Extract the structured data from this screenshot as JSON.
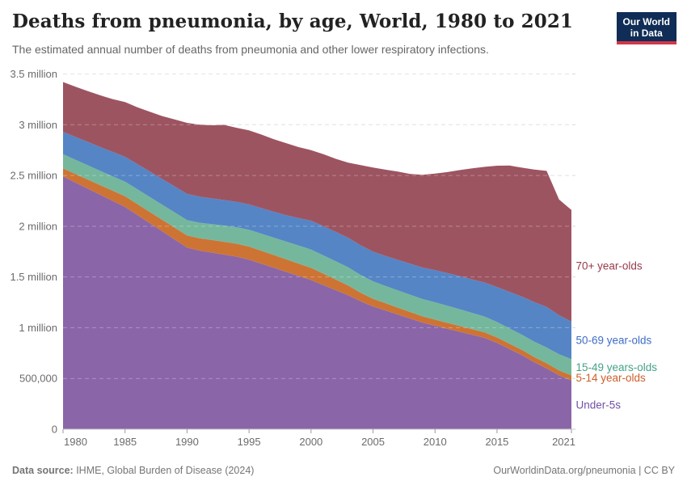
{
  "header": {
    "title": "Deaths from pneumonia, by age, World, 1980 to 2021",
    "subtitle": "The estimated annual number of deaths from pneumonia and other lower respiratory infections.",
    "logo": {
      "line1": "Our World",
      "line2": "in Data",
      "background_color": "#0f2d56",
      "accent_color": "#d0374a"
    }
  },
  "footer": {
    "source_label": "Data source:",
    "source_text": " IHME, Global Burden of Disease (2024)",
    "license": "OurWorldinData.org/pneumonia | CC BY"
  },
  "chart_data": {
    "type": "area",
    "stacked": true,
    "title": "Deaths from pneumonia, by age, World, 1980 to 2021",
    "xlabel": "",
    "ylabel": "",
    "xlim": [
      1980,
      2021
    ],
    "ylim": [
      0,
      3500000
    ],
    "grid": true,
    "gridline_color": "#d9d9d9",
    "legend_position": "right-labels",
    "x_ticks": [
      1980,
      1985,
      1990,
      1995,
      2000,
      2005,
      2010,
      2015,
      2021
    ],
    "y_ticks": [
      {
        "value": 0,
        "label": "0"
      },
      {
        "value": 500000,
        "label": "500,000"
      },
      {
        "value": 1000000,
        "label": "1 million"
      },
      {
        "value": 1500000,
        "label": "1.5 million"
      },
      {
        "value": 2000000,
        "label": "2 million"
      },
      {
        "value": 2500000,
        "label": "2.5 million"
      },
      {
        "value": 3000000,
        "label": "3 million"
      },
      {
        "value": 3500000,
        "label": "3.5 million"
      }
    ],
    "x": [
      1980,
      1981,
      1982,
      1983,
      1984,
      1985,
      1986,
      1987,
      1988,
      1989,
      1990,
      1991,
      1992,
      1993,
      1994,
      1995,
      1996,
      1997,
      1998,
      1999,
      2000,
      2001,
      2002,
      2003,
      2004,
      2005,
      2006,
      2007,
      2008,
      2009,
      2010,
      2011,
      2012,
      2013,
      2014,
      2015,
      2016,
      2017,
      2018,
      2019,
      2020,
      2021
    ],
    "series": [
      {
        "id": "under-5s",
        "label": "Under-5s",
        "color": "#8a65a8",
        "label_color": "#7052a6",
        "values": [
          2490000,
          2430000,
          2370000,
          2310000,
          2250000,
          2190000,
          2110000,
          2030000,
          1950000,
          1870000,
          1790000,
          1760000,
          1740000,
          1720000,
          1700000,
          1670000,
          1630000,
          1590000,
          1550000,
          1510000,
          1470000,
          1420000,
          1370000,
          1320000,
          1260000,
          1210000,
          1170000,
          1130000,
          1090000,
          1050000,
          1020000,
          990000,
          960000,
          930000,
          900000,
          850000,
          790000,
          730000,
          660000,
          600000,
          530000,
          480000
        ]
      },
      {
        "id": "5-14-year-olds",
        "label": "5-14 year-olds",
        "color": "#cd7434",
        "label_color": "#cc5f2a",
        "values": [
          80000,
          85000,
          90000,
          95000,
          100000,
          105000,
          108000,
          110000,
          113000,
          116000,
          120000,
          122000,
          124000,
          127000,
          128000,
          130000,
          128000,
          126000,
          124000,
          122000,
          120000,
          112000,
          104000,
          96000,
          85000,
          75000,
          72000,
          68000,
          65000,
          62000,
          60000,
          58000,
          57000,
          56000,
          55000,
          54000,
          53000,
          52000,
          51000,
          50000,
          50000,
          50000
        ]
      },
      {
        "id": "15-49-year-olds",
        "label": "15-49 years-olds",
        "color": "#75b79c",
        "label_color": "#45a188",
        "values": [
          140000,
          140000,
          140000,
          140000,
          142000,
          144000,
          146000,
          148000,
          149000,
          150000,
          150000,
          153000,
          156000,
          159000,
          162000,
          165000,
          168000,
          171000,
          174000,
          177000,
          180000,
          180000,
          180000,
          178000,
          175000,
          172000,
          170000,
          170000,
          170000,
          170000,
          170000,
          168000,
          165000,
          160000,
          155000,
          152000,
          150000,
          150000,
          152000,
          155000,
          158000,
          160000
        ]
      },
      {
        "id": "50-69-year-olds",
        "label": "50-69 year-olds",
        "color": "#5585c5",
        "label_color": "#3f6dc6",
        "values": [
          220000,
          225000,
          230000,
          235000,
          240000,
          245000,
          248000,
          250000,
          253000,
          256000,
          258000,
          256000,
          254000,
          252000,
          250000,
          250000,
          252000,
          255000,
          260000,
          270000,
          285000,
          288000,
          290000,
          292000,
          292000,
          292000,
          295000,
          300000,
          305000,
          310000,
          318000,
          322000,
          326000,
          330000,
          335000,
          345000,
          360000,
          375000,
          390000,
          400000,
          385000,
          370000
        ]
      },
      {
        "id": "70-plus-year-olds",
        "label": "70+ year-olds",
        "color": "#9d5461",
        "label_color": "#983a4a",
        "values": [
          490000,
          495000,
          500000,
          510000,
          520000,
          540000,
          560000,
          590000,
          620000,
          660000,
          700000,
          710000,
          720000,
          740000,
          730000,
          730000,
          725000,
          715000,
          710000,
          700000,
          695000,
          710000,
          720000,
          740000,
          790000,
          830000,
          850000,
          870000,
          885000,
          915000,
          950000,
          995000,
          1045000,
          1095000,
          1140000,
          1195000,
          1245000,
          1270000,
          1305000,
          1340000,
          1140000,
          1100000
        ]
      }
    ]
  }
}
